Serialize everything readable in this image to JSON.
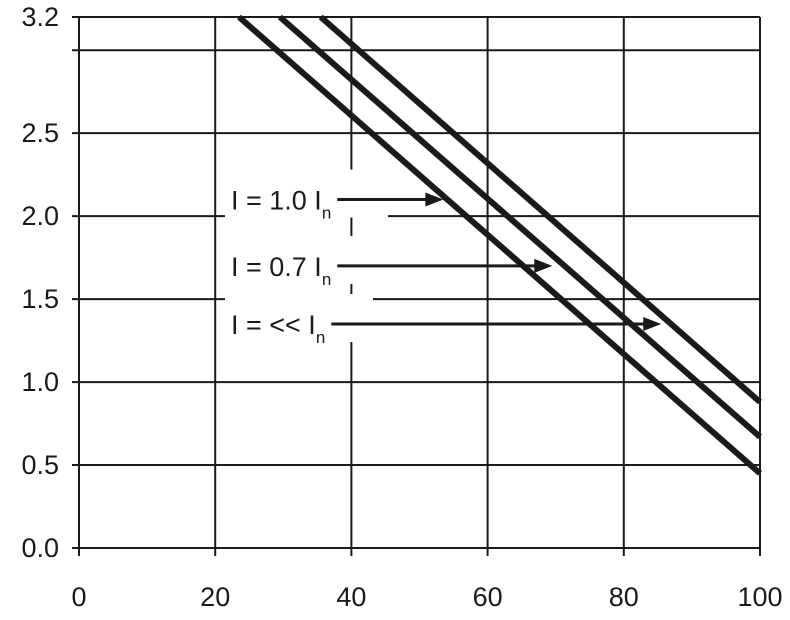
{
  "chart_data": {
    "type": "line",
    "title": "",
    "xlabel": "",
    "ylabel": "",
    "xlim": [
      0,
      100
    ],
    "ylim": [
      0,
      3.2
    ],
    "x_ticks": [
      0,
      20,
      40,
      60,
      80,
      100
    ],
    "y_ticks": [
      0.0,
      0.5,
      1.0,
      1.5,
      2.0,
      2.5,
      3.2
    ],
    "x_tick_labels": [
      "0",
      "20",
      "40",
      "60",
      "80",
      "100"
    ],
    "y_tick_labels": [
      "0.0",
      "0.5",
      "1.0",
      "1.5",
      "2.0",
      "2.5",
      "3.2"
    ],
    "extra_gridline_y": 3.0,
    "grid": true,
    "line_color": "#1a1a1a",
    "series": [
      {
        "values": [
          [
            23.5,
            3.2
          ],
          [
            100,
            0.45
          ]
        ]
      },
      {
        "values": [
          [
            29.5,
            3.2
          ],
          [
            100,
            0.67
          ]
        ]
      },
      {
        "values": [
          [
            35.5,
            3.2
          ],
          [
            100,
            0.88
          ]
        ]
      }
    ],
    "annotations": [
      {
        "main": "I = 1.0 I",
        "sub": "n",
        "arrow_to": [
          53.5,
          2.1
        ]
      },
      {
        "main": "I = 0.7 I",
        "sub": "n",
        "arrow_to": [
          69.5,
          1.7
        ]
      },
      {
        "main": "I = << I",
        "sub": "n",
        "arrow_to": [
          85.5,
          1.35
        ]
      }
    ]
  }
}
